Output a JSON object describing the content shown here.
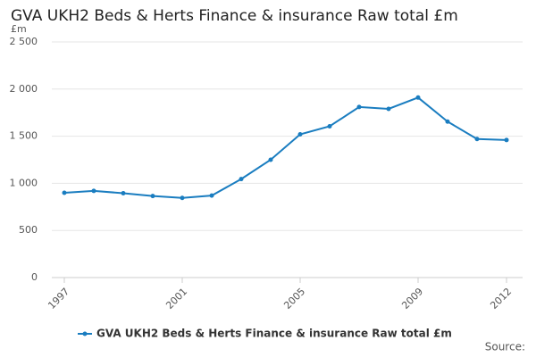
{
  "chart_data": {
    "type": "line",
    "title": "GVA UKH2 Beds & Herts Finance & insurance Raw total £m",
    "y_unit": "£m",
    "source": "Source:",
    "x": [
      1997,
      1998,
      1999,
      2000,
      2001,
      2002,
      2003,
      2004,
      2005,
      2006,
      2007,
      2008,
      2009,
      2010,
      2011,
      2012
    ],
    "xlim": [
      1997,
      2012
    ],
    "xticks": [
      1997,
      2001,
      2005,
      2009,
      2012
    ],
    "series": [
      {
        "name": "GVA UKH2 Beds & Herts Finance & insurance Raw total £m",
        "color": "#1a7dc0",
        "values": [
          900,
          920,
          895,
          865,
          845,
          870,
          1045,
          1250,
          1520,
          1605,
          1810,
          1790,
          1910,
          1655,
          1470,
          1460
        ]
      }
    ],
    "ylim": [
      0,
      2500
    ],
    "yticks": [
      0,
      500,
      {
        "value": 1000,
        "label": "1 000"
      },
      {
        "value": 1500,
        "label": "1 500"
      },
      {
        "value": 2000,
        "label": "2 000"
      },
      {
        "value": 2500,
        "label": "2 500"
      }
    ],
    "grid": true
  }
}
